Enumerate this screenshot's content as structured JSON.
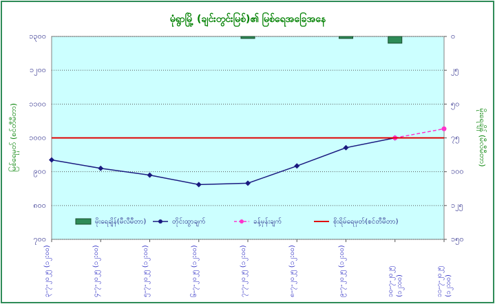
{
  "chart_data": {
    "type": "line",
    "title": "မုံရွာမြို့ (ချင်းတွင်းမြစ်)၏ မြစ်ရေအခြေအနေ",
    "y_label": "မြစ်ရေမှတ် (စင်တီမီတာ)",
    "y2_label": "မိုးရေချိန် (မီလီမီတာ)",
    "categories": [
      "၃-၇-၂၀၂၅ (၁၂:၀၀)",
      "၄-၇-၂၀၂၅ (၁၂:၀၀)",
      "၅-၇-၂၀၂၅ (၁၂:၀၀)",
      "၆-၇-၂၀၂၅ (၁၂:၀၀)",
      "၇-၇-၂၀၂၅ (၁၂:၀၀)",
      "၈-၇-၂၀၂၅ (၁၂:၀၀)",
      "၉-၇-၂၀၂၅ (၁၂:၀၀)",
      "၁၀-၇-၂၀၂၅ (၁၂:၀၀)",
      "၁၁-၇-၂၀၂၅ (၁၂:၀၀)"
    ],
    "ylim": [
      700,
      1300
    ],
    "yticks": [
      {
        "value": 700,
        "label": "၇၀၀"
      },
      {
        "value": 800,
        "label": "၈၀၀"
      },
      {
        "value": 900,
        "label": "၉၀၀"
      },
      {
        "value": 1000,
        "label": "၁၀၀၀"
      },
      {
        "value": 1100,
        "label": "၁၁၀၀"
      },
      {
        "value": 1200,
        "label": "၁၂၀၀"
      },
      {
        "value": 1300,
        "label": "၁၃၀၀"
      }
    ],
    "y2lim": [
      150,
      0
    ],
    "y2ticks": [
      {
        "value": 0,
        "label": "၀"
      },
      {
        "value": 25,
        "label": "၂၅"
      },
      {
        "value": 50,
        "label": "၅၀"
      },
      {
        "value": 75,
        "label": "၇၅"
      },
      {
        "value": 100,
        "label": "၁၀၀"
      },
      {
        "value": 125,
        "label": "၁၂၅"
      },
      {
        "value": 150,
        "label": "၁၅၀"
      }
    ],
    "grid": true,
    "series": [
      {
        "name": "မိုးရေချိန်(မီလီမီတာ)",
        "type": "bar",
        "axis": "y2",
        "color": "#2e8b57",
        "values": [
          0,
          0,
          0,
          0,
          1.5,
          0,
          1.5,
          5,
          0
        ]
      },
      {
        "name": "တိုင်းထွာချက်",
        "type": "line",
        "color": "#1a1a80",
        "dashed": false,
        "values": [
          935,
          910,
          890,
          862,
          866,
          917,
          971,
          1000,
          null
        ]
      },
      {
        "name": "ခန့်မှန်းချက်",
        "type": "line",
        "color": "#ff33cc",
        "dashed": true,
        "values": [
          null,
          null,
          null,
          null,
          null,
          null,
          null,
          1000,
          1027
        ]
      },
      {
        "name": "စိုးရိမ်ရေမှတ်(စင်တီမီတာ)",
        "type": "hline",
        "color": "#e00000",
        "value": 1000
      }
    ]
  }
}
